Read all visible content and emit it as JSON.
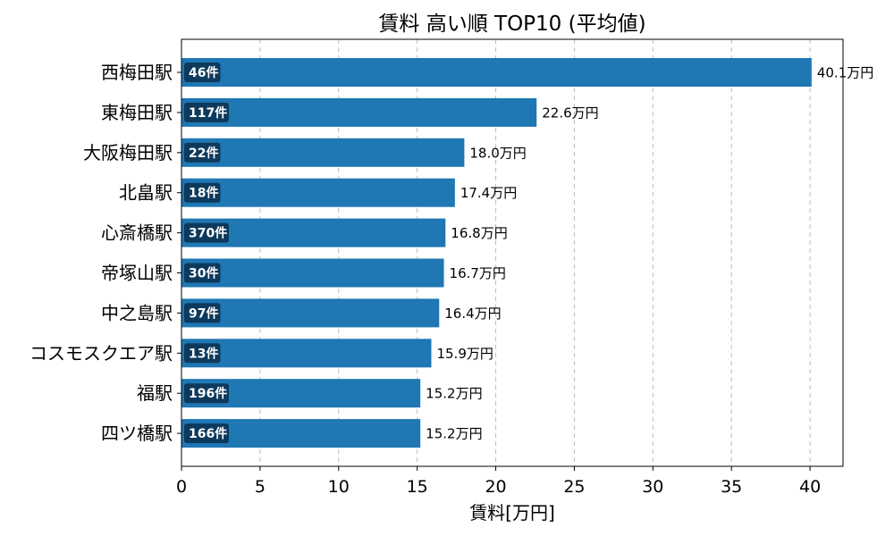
{
  "chart_data": {
    "type": "bar",
    "orientation": "horizontal",
    "title": "賃料 高い順 TOP10 (平均値)",
    "xlabel": "賃料[万円]",
    "ylabel": "",
    "xlim": [
      0,
      42.1
    ],
    "xticks": [
      0,
      5,
      10,
      15,
      20,
      25,
      30,
      35,
      40
    ],
    "grid": "x-dashed",
    "bar_color": "#1f77b4",
    "badge_color": "#0d3a5c",
    "categories": [
      "西梅田駅",
      "東梅田駅",
      "大阪梅田駅",
      "北畠駅",
      "心斎橋駅",
      "帝塚山駅",
      "中之島駅",
      "コスモスクエア駅",
      "福駅",
      "四ツ橋駅"
    ],
    "values": [
      40.1,
      22.6,
      18.0,
      17.4,
      16.8,
      16.7,
      16.4,
      15.9,
      15.2,
      15.2
    ],
    "value_labels": [
      "40.1万円",
      "22.6万円",
      "18.0万円",
      "17.4万円",
      "16.8万円",
      "16.7万円",
      "16.4万円",
      "15.9万円",
      "15.2万円",
      "15.2万円"
    ],
    "counts": [
      "46件",
      "117件",
      "22件",
      "18件",
      "370件",
      "30件",
      "97件",
      "13件",
      "196件",
      "166件"
    ]
  }
}
